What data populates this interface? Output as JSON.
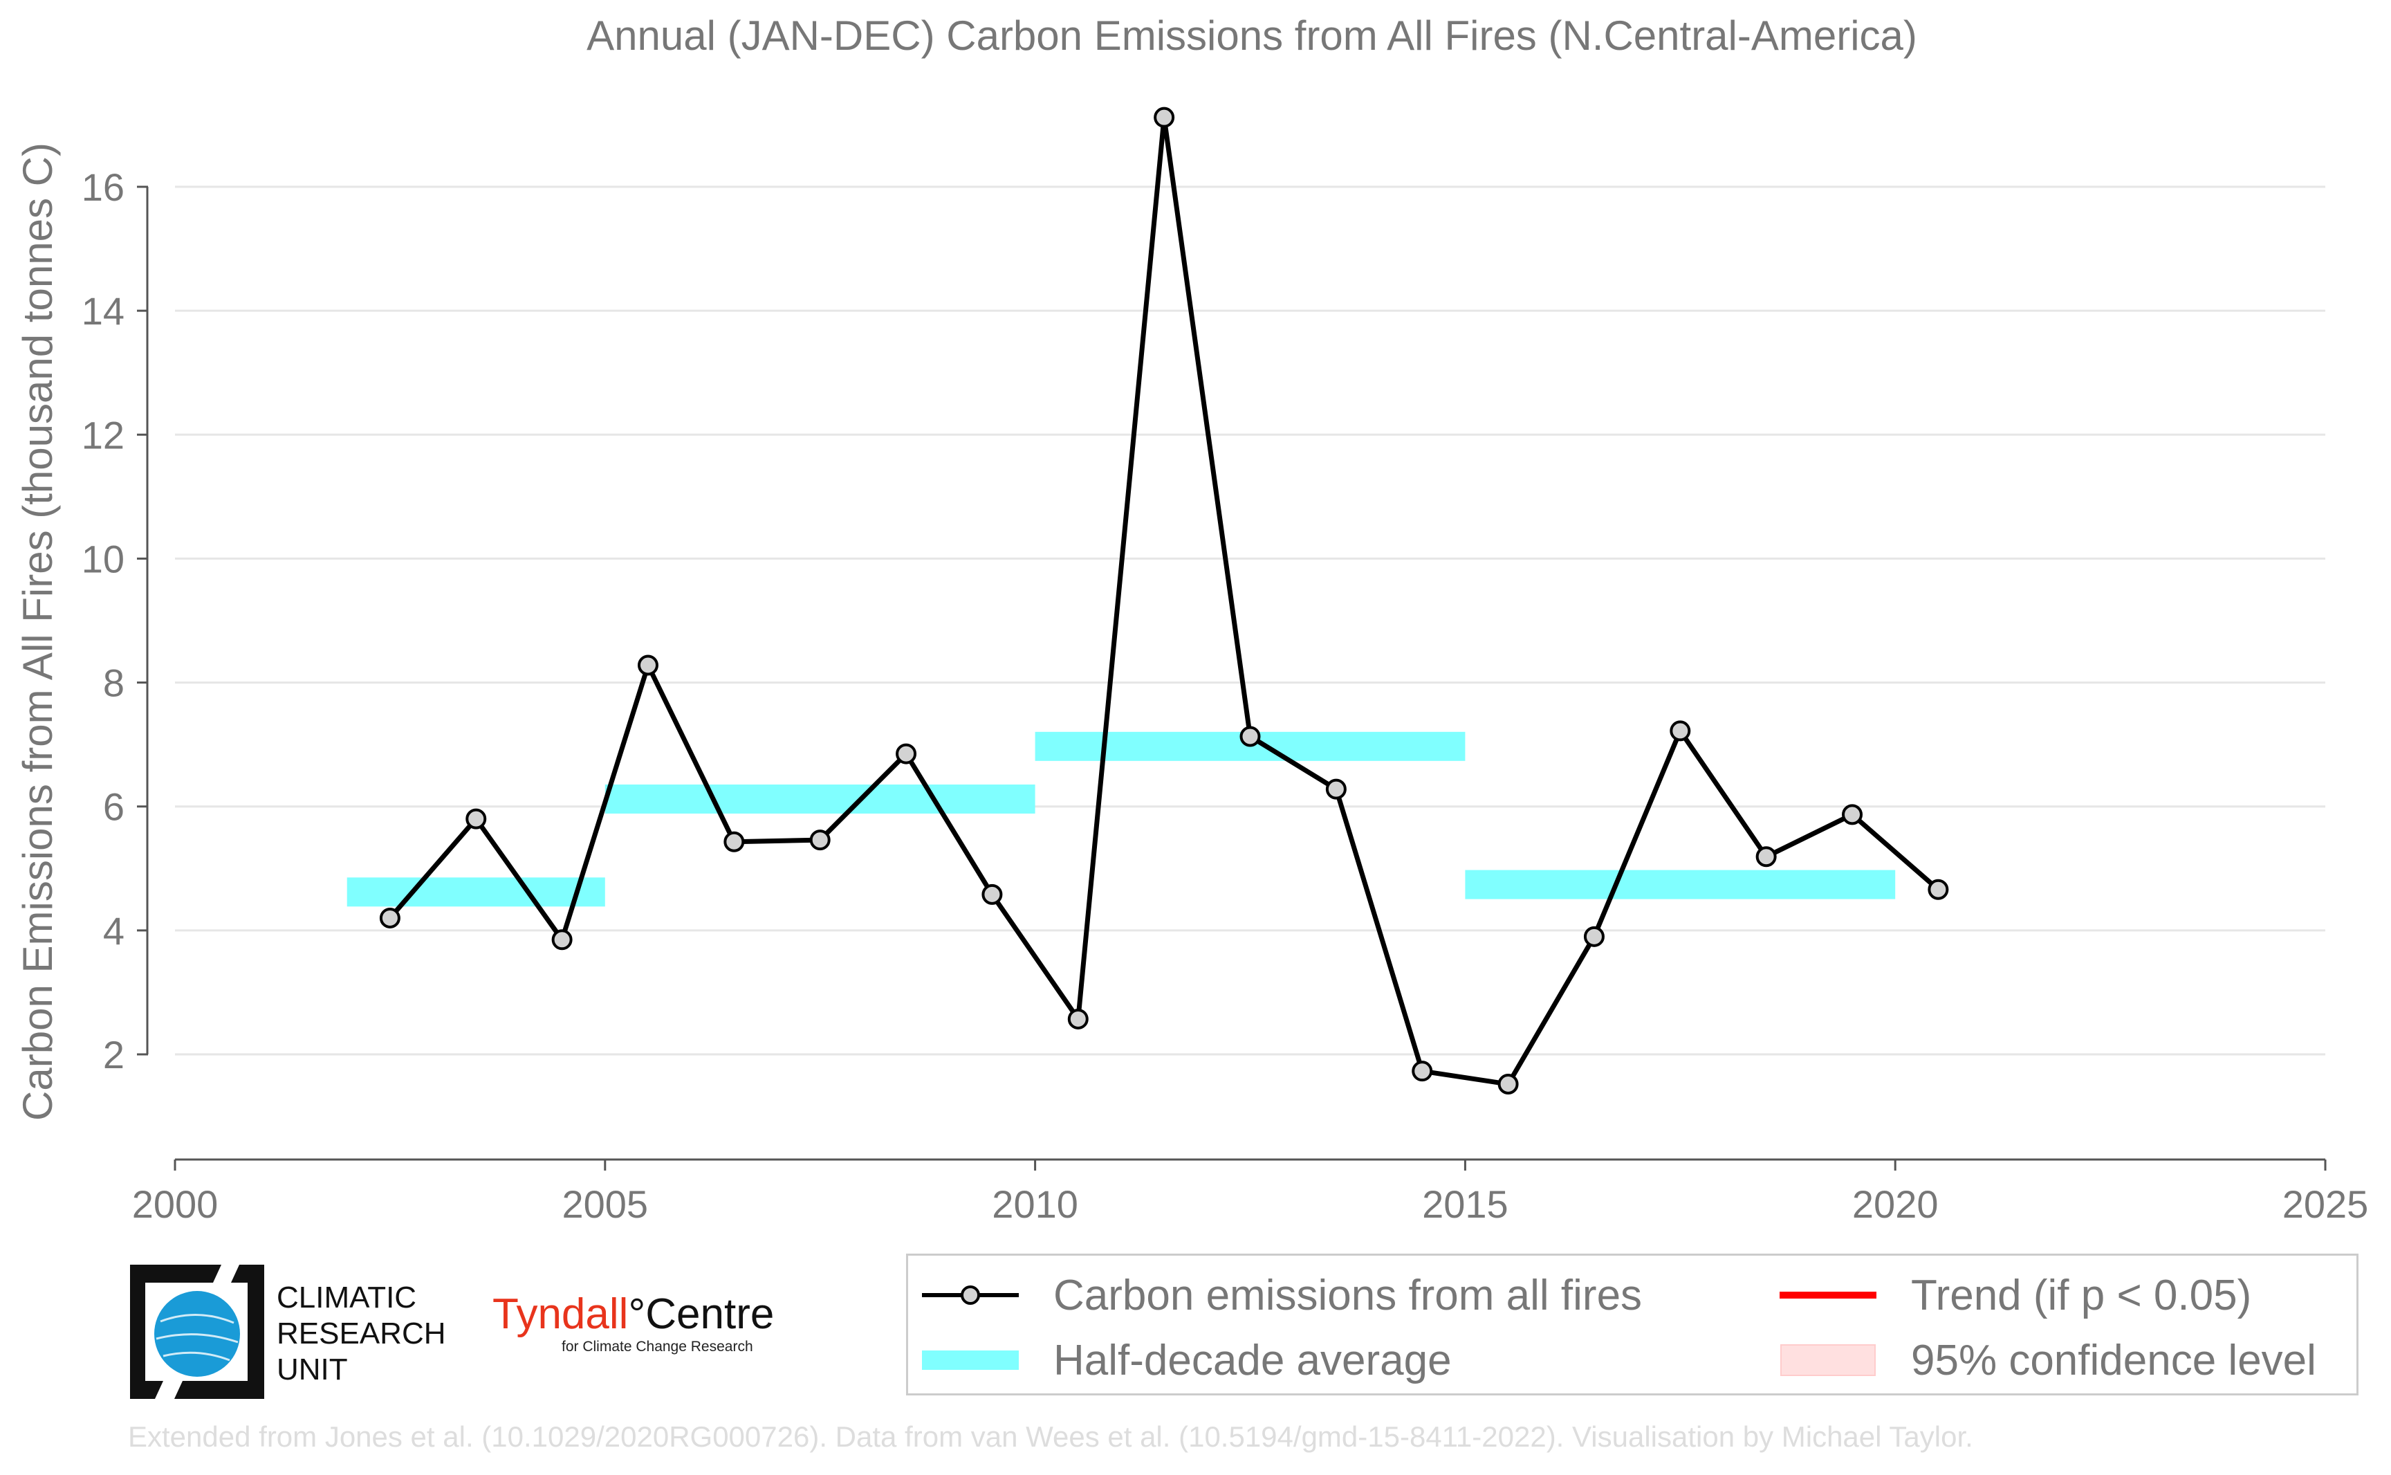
{
  "chart_data": {
    "type": "line",
    "title": "Annual (JAN-DEC) Carbon Emissions from All Fires (N.Central-America)",
    "ylabel": "Carbon Emissions from All Fires (thousand tonnes C)",
    "xlabel": "",
    "xlim": [
      2000,
      2025
    ],
    "ylim": [
      0.3,
      17.5
    ],
    "xticks": [
      "2000",
      "2005",
      "2010",
      "2015",
      "2020",
      "2025"
    ],
    "yticks": [
      "2",
      "4",
      "6",
      "8",
      "10",
      "12",
      "14",
      "16"
    ],
    "grid": "horizontal",
    "series": [
      {
        "name": "Carbon emissions from all fires",
        "color": "#000000",
        "x": [
          2002.5,
          2003.5,
          2004.5,
          2005.5,
          2006.5,
          2007.5,
          2008.5,
          2009.5,
          2010.5,
          2011.5,
          2012.5,
          2013.5,
          2014.5,
          2015.5,
          2016.5,
          2017.5,
          2018.5,
          2019.5,
          2020.5
        ],
        "y": [
          4.2,
          5.8,
          3.85,
          8.28,
          5.43,
          5.46,
          6.85,
          4.58,
          2.57,
          17.12,
          7.13,
          6.28,
          1.73,
          1.52,
          3.9,
          7.22,
          5.19,
          5.87,
          4.66
        ]
      },
      {
        "name": "Half-decade average",
        "color": "#80ffff",
        "segments": [
          {
            "x0": 2002,
            "x1": 2005,
            "y": 4.62
          },
          {
            "x0": 2005,
            "x1": 2010,
            "y": 6.12
          },
          {
            "x0": 2010,
            "x1": 2015,
            "y": 6.97
          },
          {
            "x0": 2015,
            "x1": 2020,
            "y": 4.74
          }
        ]
      }
    ],
    "legend": {
      "placement": "bottom-right",
      "items": [
        {
          "label": "Carbon emissions from all fires",
          "kind": "line-marker",
          "color": "#000000"
        },
        {
          "label": "Trend (if p < 0.05)",
          "kind": "line",
          "color": "#ff0000"
        },
        {
          "label": "Half-decade average",
          "kind": "band",
          "color": "#80ffff"
        },
        {
          "label": "95% confidence level",
          "kind": "patch",
          "color": "#ffe0e0"
        }
      ]
    }
  },
  "logos": {
    "cru": {
      "line1": "CLIMATIC",
      "line2": "RESEARCH",
      "line3": "UNIT"
    },
    "tyndall": {
      "name": "Tyndall",
      "degree": "°",
      "centre": "Centre",
      "sub": "for Climate Change Research"
    }
  },
  "credits": "Extended from Jones et al. (10.1029/2020RG000726). Data from van Wees et al. (10.5194/gmd-15-8411-2022). Visualisation by Michael Taylor."
}
